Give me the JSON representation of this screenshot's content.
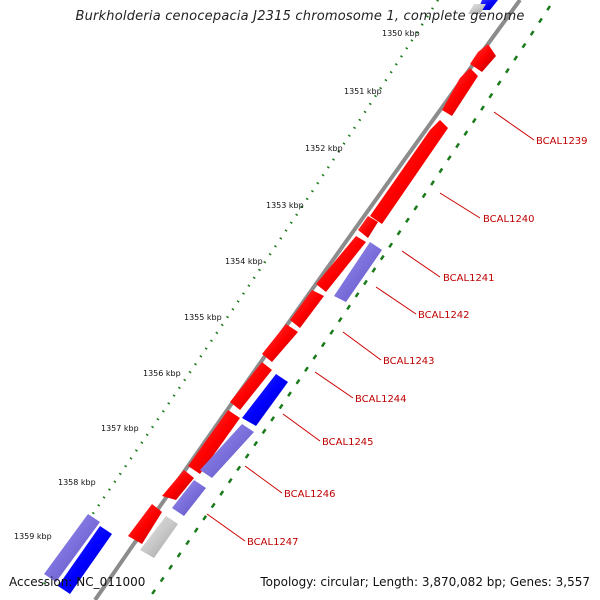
{
  "title": "Burkholderia cenocepacia J2315 chromosome 1, complete genome",
  "accession": "Accession: NC_011000",
  "topology": "Topology: circular; Length: 3,870,082 bp; Genes: 3,557",
  "kbp_ticks": [
    "1350 kbp",
    "1351 kbp",
    "1352 kbp",
    "1353 kbp",
    "1354 kbp",
    "1355 kbp",
    "1356 kbp",
    "1357 kbp",
    "1358 kbp",
    "1359 kbp"
  ],
  "gene_labels": [
    "BCAL1239",
    "BCAL1240",
    "BCAL1241",
    "BCAL1242",
    "BCAL1243",
    "BCAL1244",
    "BCAL1245",
    "BCAL1246",
    "BCAL1247"
  ],
  "colors": {
    "forward_red": "#ff0000",
    "blue": "#0000ff",
    "light_blue": "#7b6fdc",
    "grey": "#c8c8c8",
    "backbone": "#8a8a8a",
    "tick_green": "#1a7a1a",
    "label_red": "#cc0000"
  }
}
